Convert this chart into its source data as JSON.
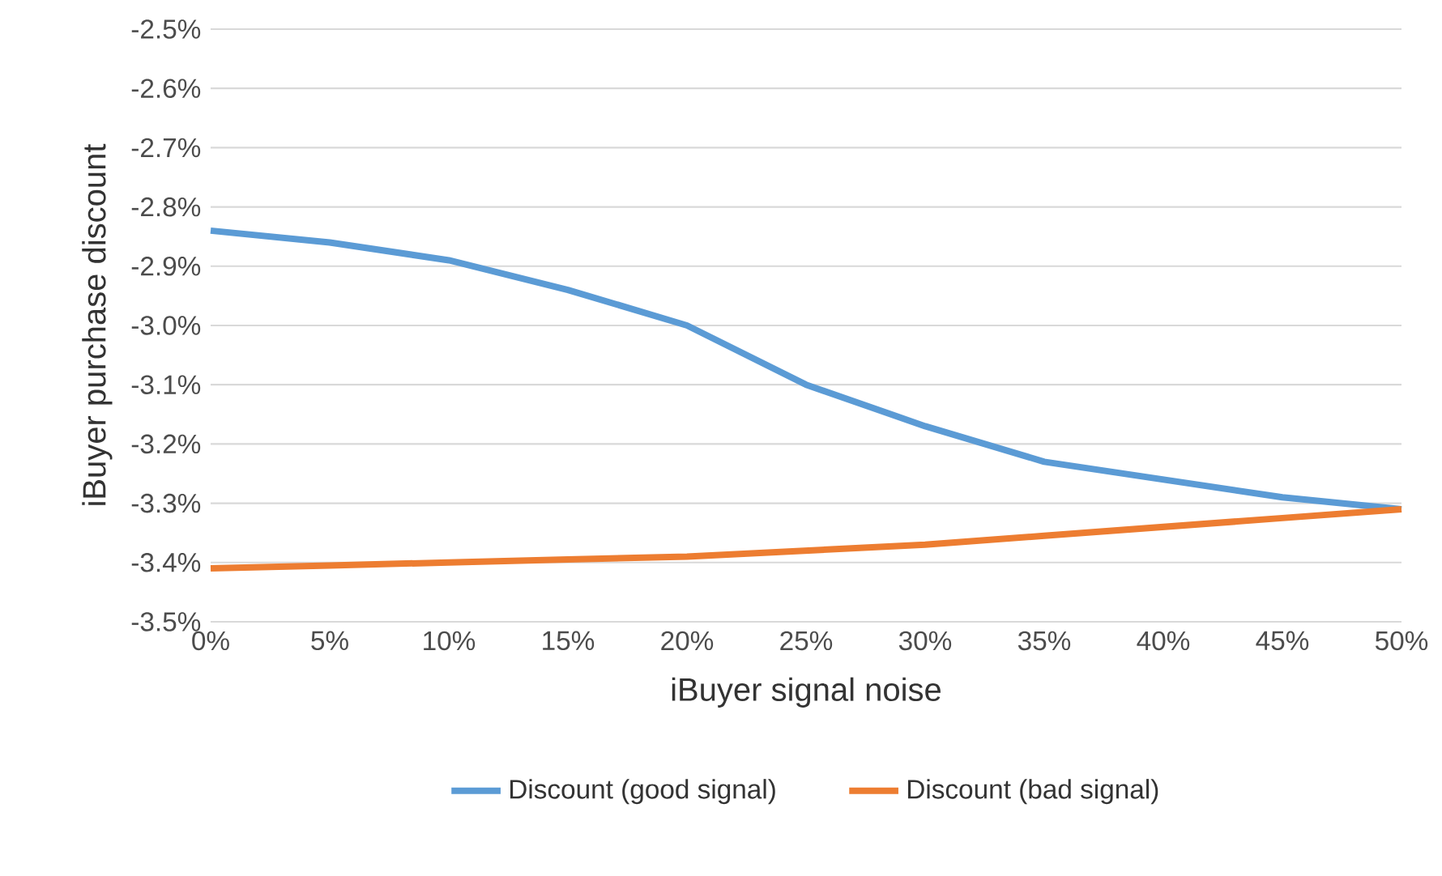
{
  "chart_data": {
    "type": "line",
    "xlabel": "iBuyer signal noise",
    "ylabel": "iBuyer purchase discount",
    "x": [
      0,
      5,
      10,
      15,
      20,
      25,
      30,
      35,
      40,
      45,
      50
    ],
    "series": [
      {
        "name": "Discount (good signal)",
        "color": "#5b9bd5",
        "values": [
          -2.84,
          -2.86,
          -2.89,
          -2.94,
          -3.0,
          -3.1,
          -3.17,
          -3.23,
          -3.26,
          -3.29,
          -3.31
        ]
      },
      {
        "name": "Discount (bad signal)",
        "color": "#ed7d31",
        "values": [
          -3.41,
          -3.405,
          -3.4,
          -3.395,
          -3.39,
          -3.38,
          -3.37,
          -3.355,
          -3.34,
          -3.325,
          -3.31
        ]
      }
    ],
    "xlim": [
      0,
      50
    ],
    "xticks": [
      {
        "value": 0,
        "label": "0%"
      },
      {
        "value": 5,
        "label": "5%"
      },
      {
        "value": 10,
        "label": "10%"
      },
      {
        "value": 15,
        "label": "15%"
      },
      {
        "value": 20,
        "label": "20%"
      },
      {
        "value": 25,
        "label": "25%"
      },
      {
        "value": 30,
        "label": "30%"
      },
      {
        "value": 35,
        "label": "35%"
      },
      {
        "value": 40,
        "label": "40%"
      },
      {
        "value": 45,
        "label": "45%"
      },
      {
        "value": 50,
        "label": "50%"
      }
    ],
    "ylim": [
      -3.5,
      -2.5
    ],
    "yticks": [
      {
        "value": -3.5,
        "label": "-3.5%"
      },
      {
        "value": -3.4,
        "label": "-3.4%"
      },
      {
        "value": -3.3,
        "label": "-3.3%"
      },
      {
        "value": -3.2,
        "label": "-3.2%"
      },
      {
        "value": -3.1,
        "label": "-3.1%"
      },
      {
        "value": -3.0,
        "label": "-3.0%"
      },
      {
        "value": -2.9,
        "label": "-2.9%"
      },
      {
        "value": -2.8,
        "label": "-2.8%"
      },
      {
        "value": -2.7,
        "label": "-2.7%"
      },
      {
        "value": -2.6,
        "label": "-2.6%"
      },
      {
        "value": -2.5,
        "label": "-2.5%"
      }
    ],
    "grid": "y",
    "legend": "bottom",
    "marker": "none",
    "line_style": "solid"
  }
}
